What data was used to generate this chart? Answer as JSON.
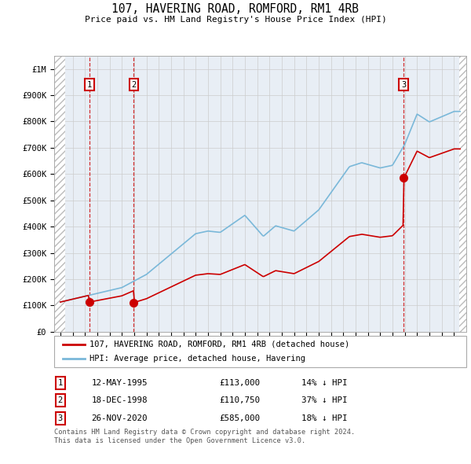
{
  "title": "107, HAVERING ROAD, ROMFORD, RM1 4RB",
  "subtitle": "Price paid vs. HM Land Registry's House Price Index (HPI)",
  "ylabel_ticks": [
    "£0",
    "£100K",
    "£200K",
    "£300K",
    "£400K",
    "£500K",
    "£600K",
    "£700K",
    "£800K",
    "£900K",
    "£1M"
  ],
  "ytick_values": [
    0,
    100000,
    200000,
    300000,
    400000,
    500000,
    600000,
    700000,
    800000,
    900000,
    1000000
  ],
  "ylim": [
    0,
    1050000
  ],
  "xlim_start": 1992.5,
  "xlim_end": 2026.0,
  "hpi_color": "#7ab8d9",
  "price_color": "#cc0000",
  "transactions": [
    {
      "date_decimal": 1995.36,
      "price": 113000,
      "label": "1"
    },
    {
      "date_decimal": 1998.96,
      "price": 110750,
      "label": "2"
    },
    {
      "date_decimal": 2020.9,
      "price": 585000,
      "label": "3"
    }
  ],
  "transaction_labels": [
    {
      "num": "1",
      "date": "12-MAY-1995",
      "price": "£113,000",
      "note": "14% ↓ HPI"
    },
    {
      "num": "2",
      "date": "18-DEC-1998",
      "price": "£110,750",
      "note": "37% ↓ HPI"
    },
    {
      "num": "3",
      "date": "26-NOV-2020",
      "price": "£585,000",
      "note": "18% ↓ HPI"
    }
  ],
  "legend_entries": [
    "107, HAVERING ROAD, ROMFORD, RM1 4RB (detached house)",
    "HPI: Average price, detached house, Havering"
  ],
  "footer_text": "Contains HM Land Registry data © Crown copyright and database right 2024.\nThis data is licensed under the Open Government Licence v3.0.",
  "grid_color": "#cccccc",
  "background_color": "#ffffff",
  "plot_bg_color": "#e8eef5",
  "hatch_region_left_end": 1993.42,
  "hatch_region_right_start": 2025.42,
  "data_start": 1993.0,
  "data_end": 2025.5
}
